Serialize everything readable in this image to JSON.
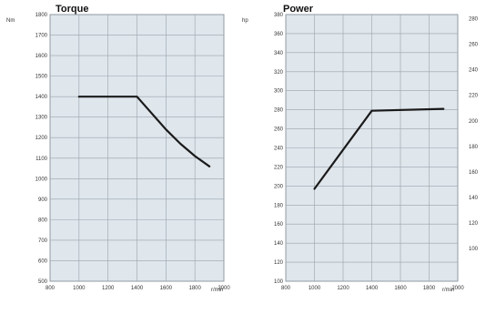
{
  "chart_data": [
    {
      "type": "line",
      "title": "Torque",
      "y_unit": "Nm",
      "x_unit": "r/min",
      "xlim": [
        800,
        2000
      ],
      "ylim": [
        500,
        1800
      ],
      "x_ticks": [
        "800",
        "1000",
        "1200",
        "1400",
        "1600",
        "1800",
        "2000"
      ],
      "y_ticks": [
        "500",
        "600",
        "700",
        "800",
        "900",
        "1000",
        "1100",
        "1200",
        "1300",
        "1400",
        "1500",
        "1600",
        "1700",
        "1800"
      ],
      "grid": true,
      "series": [
        {
          "x": [
            1000,
            1400,
            1500,
            1600,
            1700,
            1800,
            1900
          ],
          "y": [
            1400,
            1400,
            1320,
            1240,
            1170,
            1110,
            1060
          ]
        }
      ],
      "colors": {
        "line": "#1a1a1a",
        "plot_bg": "#dfe6ec",
        "grid": "#9aa3ab"
      }
    },
    {
      "type": "line",
      "title": "Power",
      "y_unit": "hp",
      "x_unit": "r/min",
      "xlim": [
        800,
        2000
      ],
      "ylim": [
        100,
        380
      ],
      "x_ticks": [
        "800",
        "1000",
        "1200",
        "1400",
        "1600",
        "1800",
        "2000"
      ],
      "y_ticks": [
        "100",
        "120",
        "140",
        "160",
        "180",
        "200",
        "220",
        "240",
        "260",
        "280",
        "300",
        "320",
        "340",
        "360",
        "380"
      ],
      "y2_ticks": [
        "100",
        "120",
        "140",
        "160",
        "180",
        "200",
        "220",
        "240",
        "260",
        "280"
      ],
      "y2lim": [
        74.5,
        283.2
      ],
      "grid": true,
      "series": [
        {
          "x": [
            1000,
            1400,
            1900
          ],
          "y": [
            197,
            279,
            281
          ]
        }
      ],
      "colors": {
        "line": "#1a1a1a",
        "plot_bg": "#dfe6ec",
        "grid": "#9aa3ab"
      }
    }
  ]
}
